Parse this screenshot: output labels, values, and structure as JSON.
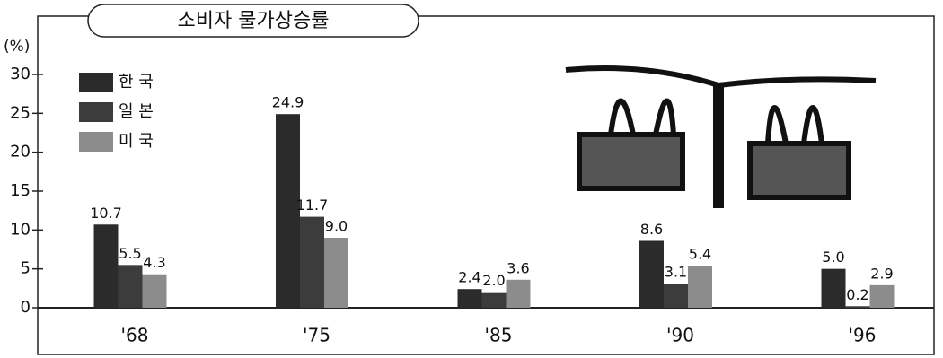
{
  "chart_data": {
    "type": "bar",
    "title": "소비자 물가상승률",
    "y_label": "(%)",
    "categories": [
      "'68",
      "'75",
      "'85",
      "'90",
      "'96"
    ],
    "series": [
      {
        "name": "한 국",
        "color": "#2b2b2b",
        "values": [
          10.7,
          24.9,
          2.4,
          8.6,
          5.0
        ],
        "value_labels": [
          "10.7",
          "24.9",
          "2.4",
          "8.6",
          "5.0"
        ]
      },
      {
        "name": "일 본",
        "color": "#3c3c3c",
        "values": [
          5.5,
          11.7,
          2.0,
          3.1,
          0.2
        ],
        "value_labels": [
          "5.5",
          "11.7",
          "2.0",
          "3.1",
          "0.2"
        ]
      },
      {
        "name": "미 국",
        "color": "#8c8c8c",
        "values": [
          4.3,
          9.0,
          3.6,
          5.4,
          2.9
        ],
        "value_labels": [
          "4.3",
          "9.0",
          "3.6",
          "5.4",
          "2.9"
        ]
      }
    ],
    "ylim": [
      0,
      30
    ],
    "yticks": [
      0,
      5,
      10,
      15,
      20,
      25,
      30
    ],
    "legend": "top-left"
  }
}
